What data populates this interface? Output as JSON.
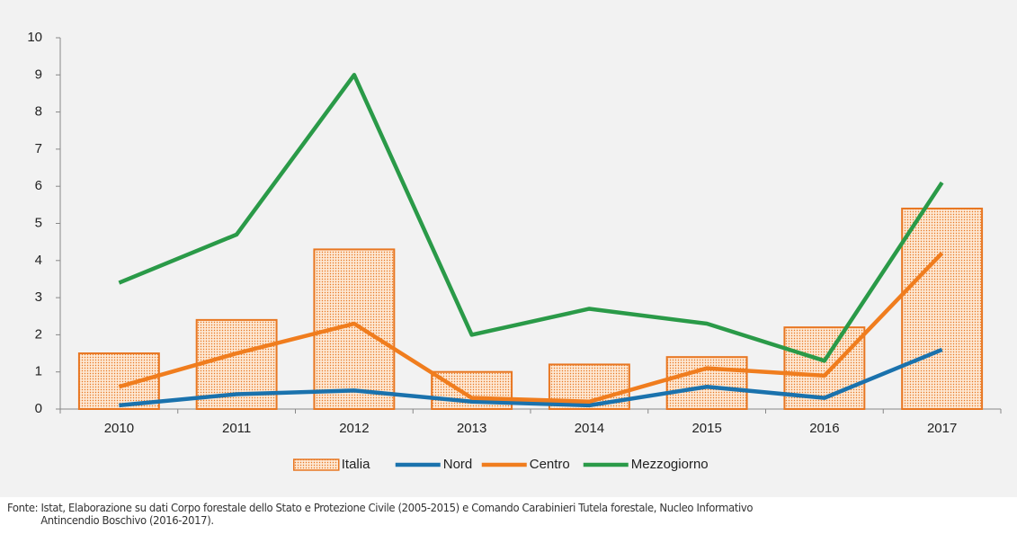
{
  "chart_data": {
    "type": "bar",
    "categories": [
      "2010",
      "2011",
      "2012",
      "2013",
      "2014",
      "2015",
      "2016",
      "2017"
    ],
    "series": [
      {
        "name": "Italia",
        "type": "bar",
        "color": "#e87722",
        "values": [
          1.5,
          2.4,
          4.3,
          1.0,
          1.2,
          1.4,
          2.2,
          5.4
        ]
      },
      {
        "name": "Nord",
        "type": "line",
        "color": "#1a72ad",
        "values": [
          0.1,
          0.4,
          0.5,
          0.2,
          0.1,
          0.6,
          0.3,
          1.6
        ]
      },
      {
        "name": "Centro",
        "type": "line",
        "color": "#f07d1e",
        "values": [
          0.6,
          1.5,
          2.3,
          0.3,
          0.2,
          1.1,
          0.9,
          4.2
        ]
      },
      {
        "name": "Mezzogiorno",
        "type": "line",
        "color": "#2a9a48",
        "values": [
          3.4,
          4.7,
          9.0,
          2.0,
          2.7,
          2.3,
          1.3,
          6.1
        ]
      }
    ],
    "ylim": [
      0,
      10
    ],
    "yticks": [
      0,
      1,
      2,
      3,
      4,
      5,
      6,
      7,
      8,
      9,
      10
    ],
    "legend": "bottom",
    "source": [
      "Fonte: Istat, Elaborazione su dati Corpo forestale dello Stato e Protezione Civile (2005-2015) e Comando Carabinieri Tutela forestale, Nucleo Informativo",
      "Antincendio Boschivo (2016-2017)."
    ]
  }
}
